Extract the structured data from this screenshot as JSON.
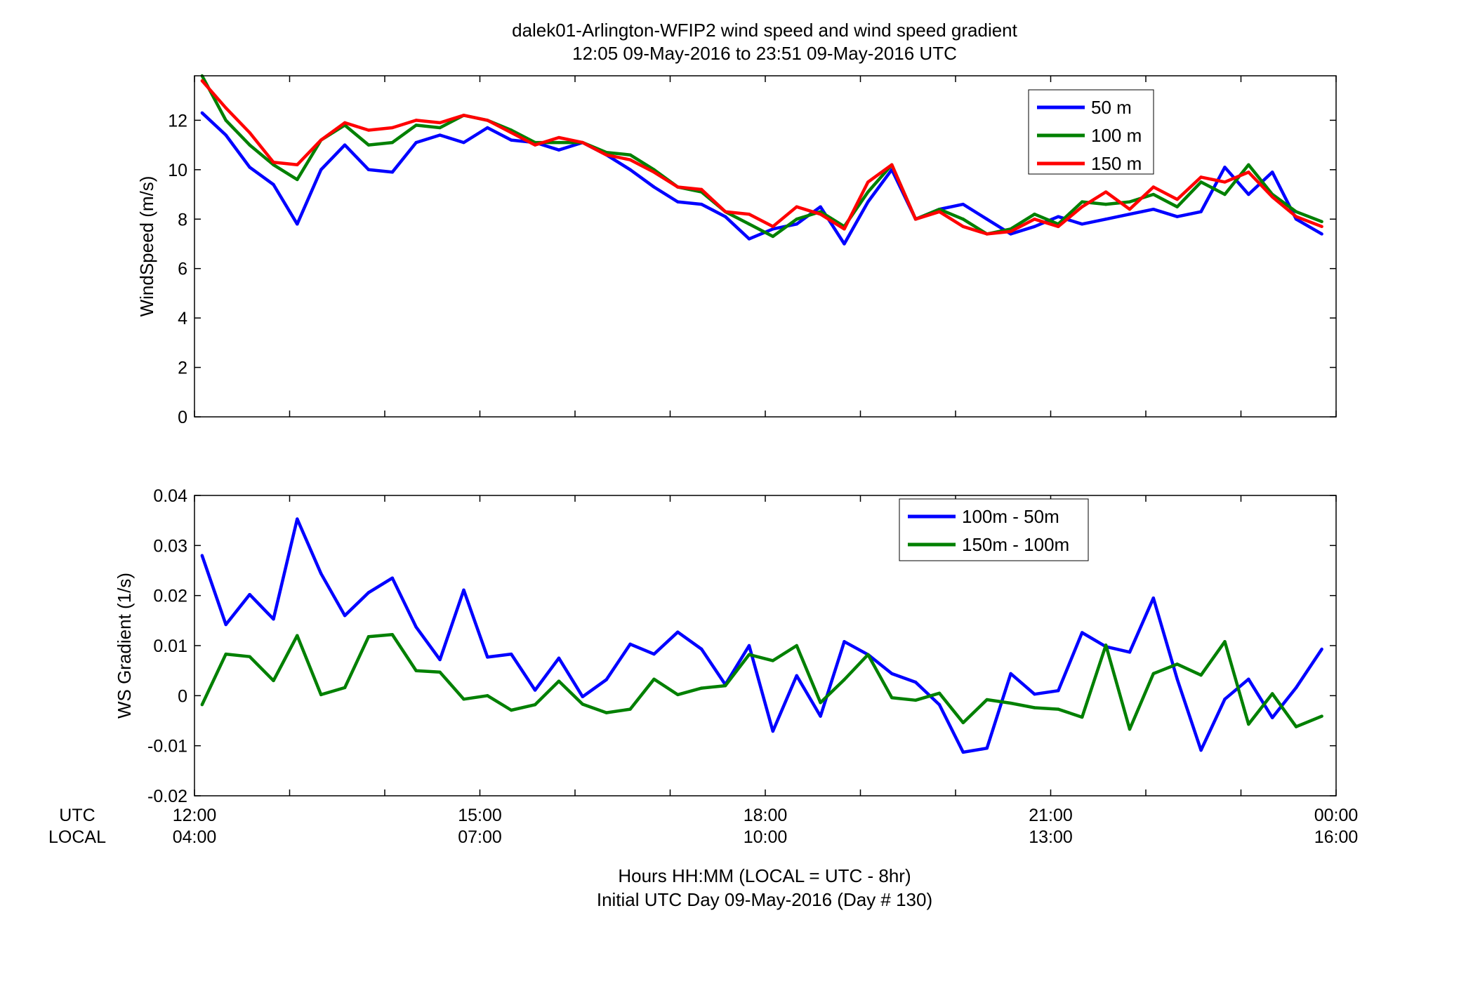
{
  "figure": {
    "title_line1": "dalek01-Arlington-WFIP2  wind speed and wind speed gradient",
    "title_line2": "12:05 09-May-2016 to 23:51 09-May-2016  UTC",
    "utc_row_label": "UTC",
    "local_row_label": "LOCAL",
    "xlabel_line1": "Hours HH:MM  (LOCAL = UTC - 8hr)",
    "xlabel_line2": "Initial UTC Day 09-May-2016 (Day # 130)",
    "x_ticks_utc": [
      "12:00",
      "15:00",
      "18:00",
      "21:00",
      "00:00"
    ],
    "x_ticks_local": [
      "04:00",
      "07:00",
      "10:00",
      "13:00",
      "16:00"
    ],
    "colors": {
      "blue": "#0000ff",
      "green": "#008000",
      "red": "#ff0000"
    }
  },
  "chart_data": [
    {
      "type": "line",
      "ylabel": "WindSpeed (m/s)",
      "xlim": [
        12.0,
        24.0
      ],
      "ylim": [
        0,
        13.8
      ],
      "yticks": [
        0,
        2,
        4,
        6,
        8,
        10,
        12
      ],
      "ytick_labels": [
        "0",
        "2",
        "4",
        "6",
        "8",
        "10",
        "12"
      ],
      "grid": false,
      "legend_position": "top-right",
      "x_hours_utc": [
        12.08,
        12.33,
        12.58,
        12.83,
        13.08,
        13.33,
        13.58,
        13.83,
        14.08,
        14.33,
        14.58,
        14.83,
        15.08,
        15.33,
        15.58,
        15.83,
        16.08,
        16.33,
        16.58,
        16.83,
        17.08,
        17.33,
        17.58,
        17.83,
        18.08,
        18.33,
        18.58,
        18.83,
        19.08,
        19.33,
        19.58,
        19.83,
        20.08,
        20.33,
        20.58,
        20.83,
        21.08,
        21.33,
        21.58,
        21.83,
        22.08,
        22.33,
        22.58,
        22.83,
        23.08,
        23.33,
        23.58,
        23.85
      ],
      "series": [
        {
          "name": "50 m",
          "color": "#0000ff",
          "values": [
            12.3,
            11.4,
            10.1,
            9.4,
            7.8,
            10.0,
            11.0,
            10.0,
            9.9,
            11.1,
            11.4,
            11.1,
            11.7,
            11.2,
            11.1,
            10.8,
            11.1,
            10.6,
            10.0,
            9.3,
            8.7,
            8.6,
            8.1,
            7.2,
            7.6,
            7.8,
            8.5,
            7.0,
            8.7,
            10.0,
            8.0,
            8.4,
            8.6,
            8.0,
            7.4,
            7.7,
            8.1,
            7.8,
            8.0,
            8.2,
            8.4,
            8.1,
            8.3,
            10.1,
            9.0,
            9.9,
            8.0,
            7.4
          ]
        },
        {
          "name": "100 m",
          "color": "#008000",
          "values": [
            13.8,
            12.0,
            11.0,
            10.2,
            9.6,
            11.2,
            11.8,
            11.0,
            11.1,
            11.8,
            11.7,
            12.2,
            12.0,
            11.6,
            11.1,
            11.1,
            11.1,
            10.7,
            10.6,
            10.0,
            9.3,
            9.1,
            8.3,
            7.8,
            7.3,
            8.0,
            8.3,
            7.7,
            9.1,
            10.2,
            8.0,
            8.4,
            8.0,
            7.4,
            7.6,
            8.2,
            7.8,
            8.7,
            8.6,
            8.7,
            9.0,
            8.5,
            9.5,
            9.0,
            10.2,
            9.0,
            8.3,
            7.9
          ]
        },
        {
          "name": "150 m",
          "color": "#ff0000",
          "values": [
            13.6,
            12.5,
            11.5,
            10.3,
            10.2,
            11.2,
            11.9,
            11.6,
            11.7,
            12.0,
            11.9,
            12.2,
            12.0,
            11.5,
            11.0,
            11.3,
            11.1,
            10.6,
            10.4,
            9.9,
            9.3,
            9.2,
            8.3,
            8.2,
            7.7,
            8.5,
            8.2,
            7.6,
            9.5,
            10.2,
            8.0,
            8.3,
            7.7,
            7.4,
            7.5,
            8.0,
            7.7,
            8.5,
            9.1,
            8.4,
            9.3,
            8.8,
            9.7,
            9.5,
            9.9,
            8.9,
            8.1,
            7.7
          ]
        }
      ]
    },
    {
      "type": "line",
      "ylabel": "WS Gradient (1/s)",
      "xlim": [
        12.0,
        24.0
      ],
      "ylim": [
        -0.02,
        0.04
      ],
      "yticks": [
        -0.02,
        -0.01,
        0,
        0.01,
        0.02,
        0.03,
        0.04
      ],
      "ytick_labels": [
        "-0.02",
        "-0.01",
        "0",
        "0.01",
        "0.02",
        "0.03",
        "0.04"
      ],
      "grid": false,
      "legend_position": "top-right",
      "x_hours_utc": [
        12.08,
        12.33,
        12.58,
        12.83,
        13.08,
        13.33,
        13.58,
        13.83,
        14.08,
        14.33,
        14.58,
        14.83,
        15.08,
        15.33,
        15.58,
        15.83,
        16.08,
        16.33,
        16.58,
        16.83,
        17.08,
        17.33,
        17.58,
        17.83,
        18.08,
        18.33,
        18.58,
        18.83,
        19.08,
        19.33,
        19.58,
        19.83,
        20.08,
        20.33,
        20.58,
        20.83,
        21.08,
        21.33,
        21.58,
        21.83,
        22.08,
        22.33,
        22.58,
        22.83,
        23.08,
        23.33,
        23.58,
        23.85
      ],
      "series": [
        {
          "name": "100m - 50m",
          "color": "#0000ff",
          "values": [
            0.028,
            0.0142,
            0.0202,
            0.0153,
            0.0353,
            0.0244,
            0.016,
            0.0206,
            0.0235,
            0.0137,
            0.0072,
            0.0211,
            0.0077,
            0.0083,
            0.0011,
            0.0075,
            -0.0002,
            0.0032,
            0.0103,
            0.0083,
            0.0127,
            0.0093,
            0.0022,
            0.01,
            -0.0071,
            0.004,
            -0.0041,
            0.0108,
            0.0082,
            0.0044,
            0.0027,
            -0.0018,
            -0.0113,
            -0.0105,
            0.0044,
            0.0003,
            0.001,
            0.0126,
            0.0098,
            0.0087,
            0.0195,
            0.0033,
            -0.0109,
            -0.0007,
            0.0033,
            -0.0044,
            0.0016,
            0.0093
          ]
        },
        {
          "name": "150m - 100m",
          "color": "#008000",
          "values": [
            -0.0018,
            0.0083,
            0.0078,
            0.003,
            0.012,
            0.0002,
            0.0016,
            0.0118,
            0.0122,
            0.005,
            0.0047,
            -0.0007,
            0.0,
            -0.0029,
            -0.0018,
            0.0029,
            -0.0017,
            -0.0034,
            -0.0027,
            0.0033,
            0.0002,
            0.0015,
            0.002,
            0.0082,
            0.007,
            0.01,
            -0.0014,
            0.0032,
            0.0082,
            -0.0004,
            -0.0009,
            0.0005,
            -0.0054,
            -0.0008,
            -0.0015,
            -0.0024,
            -0.0027,
            -0.0043,
            0.0101,
            -0.0067,
            0.0044,
            0.0063,
            0.0041,
            0.0108,
            -0.0057,
            0.0004,
            -0.0062,
            -0.0041
          ]
        }
      ]
    }
  ]
}
